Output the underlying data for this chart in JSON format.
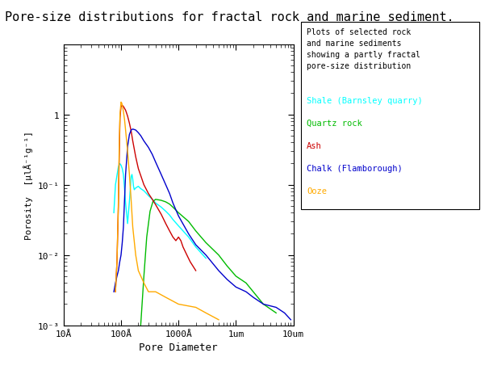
{
  "title": "Pore-size distributions for fractal rock and marine sediment.",
  "xlabel": "Pore Diameter",
  "ylabel": "Porosity  [µlÅ⁻¹g⁻¹]",
  "xlim_log": [
    10,
    100000
  ],
  "ylim_log": [
    0.001,
    10
  ],
  "background_color": "#ffffff",
  "legend_text": "Plots of selected rock\nand marine sediments\nshowing a partly fractal\npore-size distribution",
  "xtick_vals": [
    10,
    100,
    1000,
    10000,
    100000
  ],
  "xtick_labels": [
    "10Å",
    "100Å",
    "1000Å",
    "1um",
    "10um"
  ],
  "ytick_vals": [
    0.001,
    0.01,
    0.1,
    1
  ],
  "ytick_labels": [
    "10⁻³",
    "10⁻²",
    "10⁻¹",
    "1"
  ],
  "series": [
    {
      "name": "Shale (Barnsley quarry)",
      "color": "#00ffff",
      "x": [
        75,
        80,
        90,
        95,
        100,
        105,
        110,
        115,
        120,
        130,
        140,
        150,
        155,
        160,
        165,
        170,
        180,
        200,
        220,
        250,
        300,
        350,
        400,
        500,
        600,
        700,
        800,
        1000,
        1500,
        2000,
        3000
      ],
      "y": [
        0.04,
        0.1,
        0.18,
        0.2,
        0.19,
        0.17,
        0.14,
        0.09,
        0.055,
        0.028,
        0.058,
        0.13,
        0.14,
        0.12,
        0.095,
        0.085,
        0.09,
        0.095,
        0.088,
        0.082,
        0.07,
        0.062,
        0.055,
        0.048,
        0.042,
        0.037,
        0.032,
        0.026,
        0.018,
        0.013,
        0.009
      ]
    },
    {
      "name": "Quartz rock",
      "color": "#00bb00",
      "x": [
        220,
        250,
        280,
        320,
        360,
        400,
        500,
        600,
        700,
        800,
        1000,
        1500,
        2000,
        3000,
        5000,
        7000,
        10000,
        15000,
        20000,
        30000,
        50000
      ],
      "y": [
        0.001,
        0.005,
        0.018,
        0.042,
        0.058,
        0.062,
        0.06,
        0.057,
        0.053,
        0.048,
        0.04,
        0.03,
        0.022,
        0.015,
        0.01,
        0.007,
        0.005,
        0.004,
        0.003,
        0.002,
        0.0015
      ]
    },
    {
      "name": "Ash",
      "color": "#cc0000",
      "x": [
        80,
        85,
        90,
        93,
        96,
        100,
        105,
        110,
        120,
        130,
        140,
        150,
        160,
        180,
        200,
        250,
        300,
        350,
        400,
        500,
        600,
        700,
        800,
        900,
        1000,
        1100,
        1200,
        1400,
        1600,
        2000
      ],
      "y": [
        0.003,
        0.008,
        0.05,
        0.25,
        0.9,
        1.3,
        1.35,
        1.3,
        1.15,
        0.95,
        0.75,
        0.58,
        0.42,
        0.25,
        0.17,
        0.1,
        0.075,
        0.062,
        0.052,
        0.038,
        0.028,
        0.022,
        0.018,
        0.016,
        0.018,
        0.016,
        0.013,
        0.01,
        0.008,
        0.006
      ]
    },
    {
      "name": "Chalk (Flamborough)",
      "color": "#0000cc",
      "x": [
        75,
        80,
        85,
        90,
        95,
        100,
        105,
        110,
        115,
        120,
        130,
        140,
        150,
        160,
        180,
        200,
        220,
        250,
        300,
        350,
        400,
        500,
        600,
        700,
        800,
        1000,
        1500,
        2000,
        3000,
        5000,
        7000,
        10000,
        15000,
        20000,
        30000,
        50000,
        70000,
        90000
      ],
      "y": [
        0.003,
        0.004,
        0.005,
        0.006,
        0.008,
        0.01,
        0.015,
        0.025,
        0.06,
        0.14,
        0.35,
        0.52,
        0.6,
        0.62,
        0.6,
        0.55,
        0.5,
        0.42,
        0.34,
        0.27,
        0.21,
        0.14,
        0.1,
        0.075,
        0.055,
        0.036,
        0.02,
        0.014,
        0.01,
        0.006,
        0.0045,
        0.0035,
        0.003,
        0.0025,
        0.002,
        0.0018,
        0.0015,
        0.0012
      ]
    },
    {
      "name": "Ooze",
      "color": "#ffaa00",
      "x": [
        80,
        85,
        90,
        93,
        96,
        100,
        103,
        105,
        108,
        110,
        115,
        120,
        130,
        140,
        150,
        160,
        180,
        200,
        250,
        300,
        400,
        600,
        1000,
        2000,
        3000,
        5000
      ],
      "y": [
        0.003,
        0.008,
        0.06,
        0.35,
        1.0,
        1.5,
        1.45,
        1.35,
        1.2,
        1.1,
        0.85,
        0.6,
        0.3,
        0.14,
        0.06,
        0.025,
        0.01,
        0.006,
        0.004,
        0.003,
        0.003,
        0.0025,
        0.002,
        0.0018,
        0.0015,
        0.0012
      ]
    }
  ]
}
